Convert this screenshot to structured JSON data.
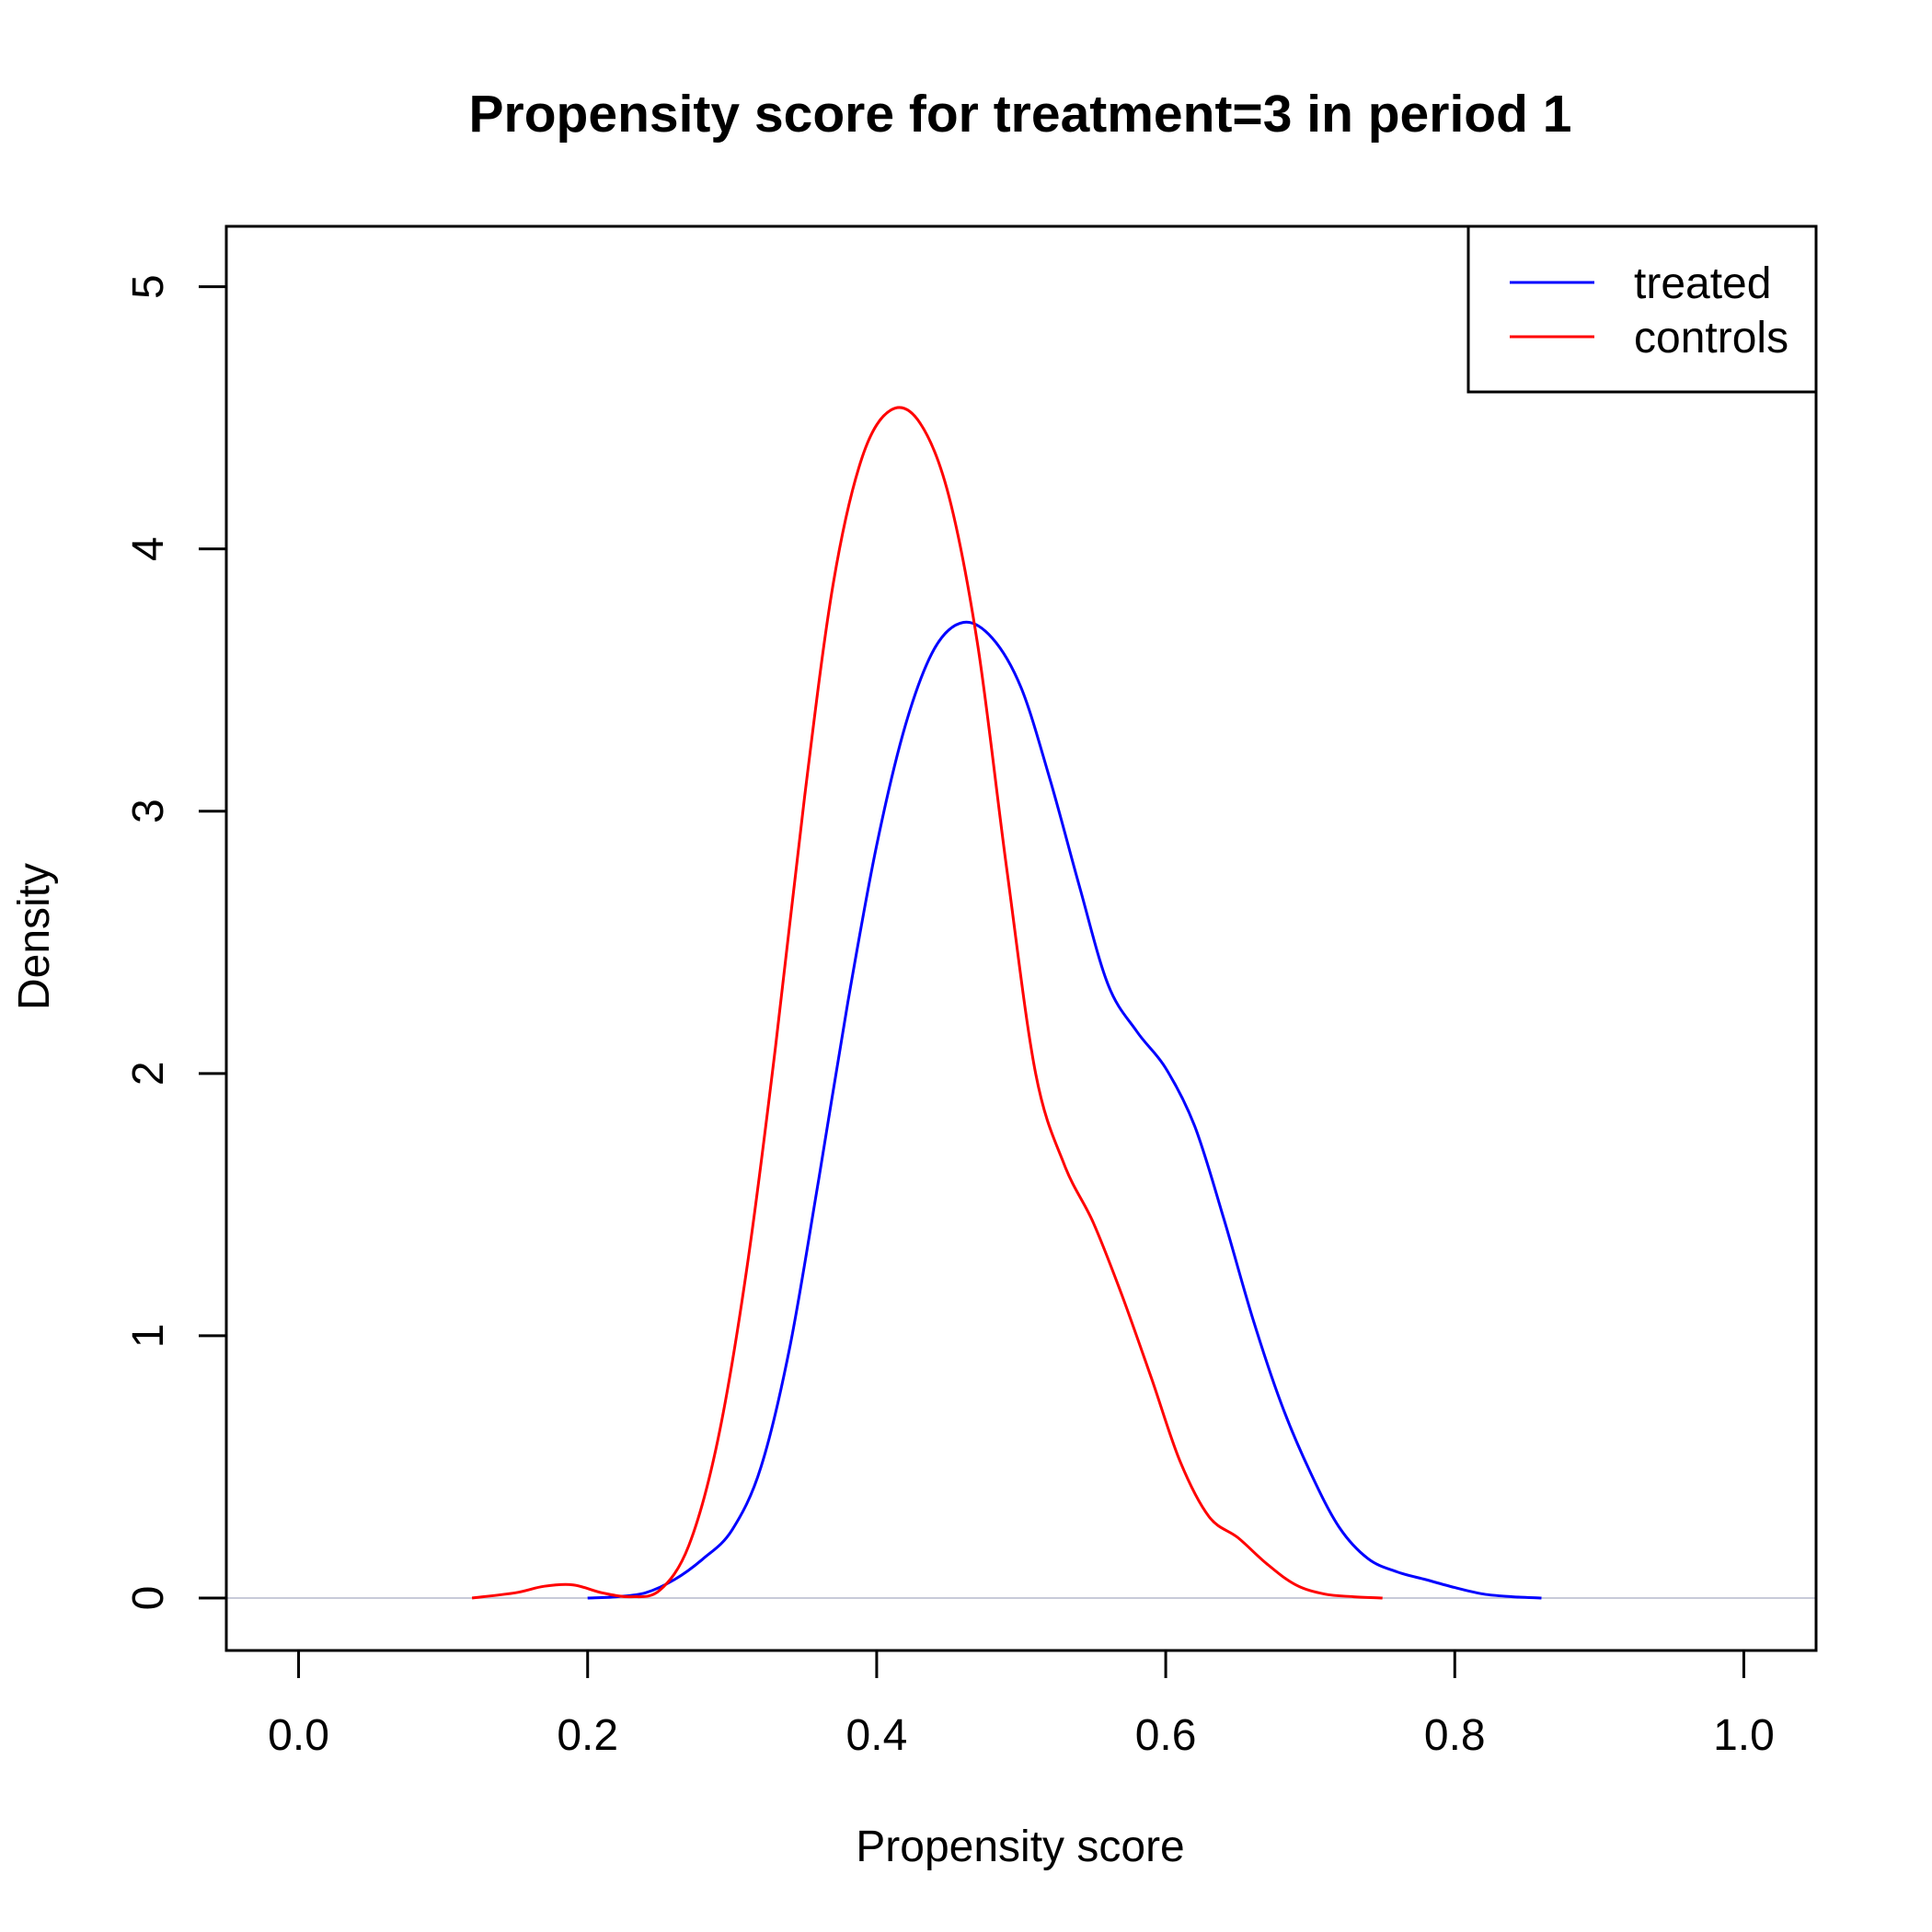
{
  "chart_data": {
    "type": "line",
    "title": "Propensity score for treatment=3 in period 1",
    "xlabel": "Propensity score",
    "ylabel": "Density",
    "xlim": [
      -0.05,
      1.05
    ],
    "ylim": [
      -0.2,
      5.23
    ],
    "x_ticks": [
      "0.0",
      "0.2",
      "0.4",
      "0.6",
      "0.8",
      "1.0"
    ],
    "y_ticks": [
      "0",
      "1",
      "2",
      "3",
      "4",
      "5"
    ],
    "legend": {
      "position": "top-right",
      "entries": [
        "treated",
        "controls"
      ]
    },
    "baseline_color": "#c8cbd9",
    "series": [
      {
        "name": "treated",
        "color": "#0000ff",
        "points": [
          [
            0.2,
            0.0
          ],
          [
            0.22,
            0.005
          ],
          [
            0.24,
            0.02
          ],
          [
            0.26,
            0.07
          ],
          [
            0.28,
            0.15
          ],
          [
            0.3,
            0.26
          ],
          [
            0.32,
            0.5
          ],
          [
            0.34,
            0.96
          ],
          [
            0.36,
            1.6
          ],
          [
            0.38,
            2.27
          ],
          [
            0.4,
            2.87
          ],
          [
            0.42,
            3.33
          ],
          [
            0.44,
            3.62
          ],
          [
            0.46,
            3.72
          ],
          [
            0.48,
            3.66
          ],
          [
            0.5,
            3.47
          ],
          [
            0.52,
            3.12
          ],
          [
            0.54,
            2.72
          ],
          [
            0.56,
            2.34
          ],
          [
            0.58,
            2.16
          ],
          [
            0.6,
            2.02
          ],
          [
            0.62,
            1.8
          ],
          [
            0.64,
            1.45
          ],
          [
            0.66,
            1.07
          ],
          [
            0.68,
            0.74
          ],
          [
            0.7,
            0.48
          ],
          [
            0.72,
            0.27
          ],
          [
            0.74,
            0.15
          ],
          [
            0.76,
            0.1
          ],
          [
            0.78,
            0.07
          ],
          [
            0.8,
            0.04
          ],
          [
            0.82,
            0.015
          ],
          [
            0.84,
            0.005
          ],
          [
            0.86,
            0.0
          ]
        ]
      },
      {
        "name": "controls",
        "color": "#ff0000",
        "points": [
          [
            0.12,
            0.0
          ],
          [
            0.15,
            0.02
          ],
          [
            0.17,
            0.045
          ],
          [
            0.19,
            0.05
          ],
          [
            0.21,
            0.02
          ],
          [
            0.23,
            0.005
          ],
          [
            0.25,
            0.03
          ],
          [
            0.27,
            0.2
          ],
          [
            0.29,
            0.6
          ],
          [
            0.31,
            1.25
          ],
          [
            0.33,
            2.1
          ],
          [
            0.35,
            3.05
          ],
          [
            0.37,
            3.87
          ],
          [
            0.39,
            4.35
          ],
          [
            0.41,
            4.53
          ],
          [
            0.43,
            4.48
          ],
          [
            0.45,
            4.2
          ],
          [
            0.47,
            3.63
          ],
          [
            0.49,
            2.78
          ],
          [
            0.51,
            2.0
          ],
          [
            0.53,
            1.65
          ],
          [
            0.55,
            1.43
          ],
          [
            0.57,
            1.15
          ],
          [
            0.59,
            0.84
          ],
          [
            0.61,
            0.52
          ],
          [
            0.63,
            0.31
          ],
          [
            0.65,
            0.23
          ],
          [
            0.67,
            0.13
          ],
          [
            0.69,
            0.05
          ],
          [
            0.71,
            0.015
          ],
          [
            0.73,
            0.005
          ],
          [
            0.75,
            0.0
          ]
        ]
      }
    ]
  }
}
